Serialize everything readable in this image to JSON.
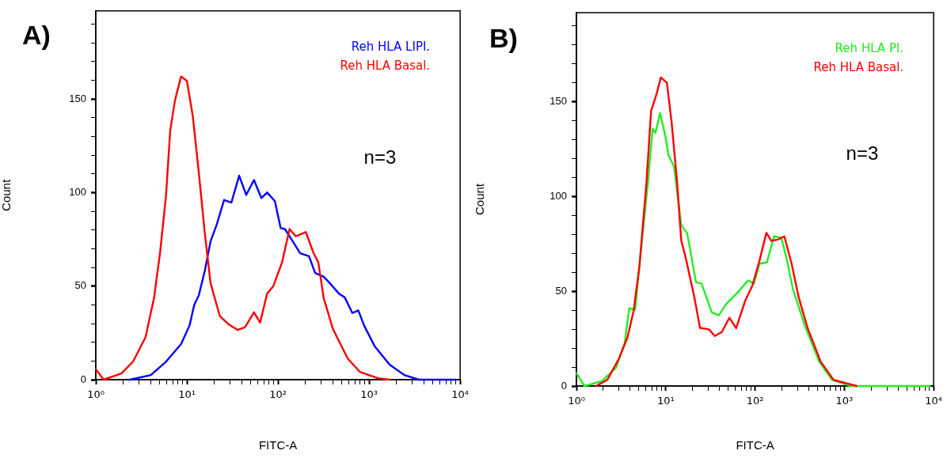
{
  "chart_data": [
    {
      "type": "line",
      "title": "A)",
      "xlabel": "FITC-A",
      "ylabel": "Count",
      "annotations": [
        "n=3"
      ],
      "log": "x",
      "legend": "top right",
      "xlim": [
        1,
        10000
      ],
      "xticks": [
        {
          "value": 1,
          "label": "10⁰"
        },
        {
          "value": 2,
          "label": null
        },
        {
          "value": 3,
          "label": null
        },
        {
          "value": 4,
          "label": null
        },
        {
          "value": 5,
          "label": null
        },
        {
          "value": 6,
          "label": null
        },
        {
          "value": 7,
          "label": null
        },
        {
          "value": 8,
          "label": null
        },
        {
          "value": 9,
          "label": null
        },
        {
          "value": 10,
          "label": "10¹"
        },
        {
          "value": 20,
          "label": null
        },
        {
          "value": 30,
          "label": null
        },
        {
          "value": 40,
          "label": null
        },
        {
          "value": 50,
          "label": null
        },
        {
          "value": 60,
          "label": null
        },
        {
          "value": 70,
          "label": null
        },
        {
          "value": 80,
          "label": null
        },
        {
          "value": 90,
          "label": null
        },
        {
          "value": 100,
          "label": "10²"
        },
        {
          "value": 200,
          "label": null
        },
        {
          "value": 300,
          "label": null
        },
        {
          "value": 400,
          "label": null
        },
        {
          "value": 500,
          "label": null
        },
        {
          "value": 600,
          "label": null
        },
        {
          "value": 700,
          "label": null
        },
        {
          "value": 800,
          "label": null
        },
        {
          "value": 900,
          "label": null
        },
        {
          "value": 1000,
          "label": "10³"
        },
        {
          "value": 2000,
          "label": null
        },
        {
          "value": 3000,
          "label": null
        },
        {
          "value": 4000,
          "label": null
        },
        {
          "value": 5000,
          "label": null
        },
        {
          "value": 6000,
          "label": null
        },
        {
          "value": 7000,
          "label": null
        },
        {
          "value": 8000,
          "label": null
        },
        {
          "value": 9000,
          "label": null
        },
        {
          "value": 10000,
          "label": "10⁴"
        }
      ],
      "ylim": [
        0,
        197
      ],
      "yticks": [
        0,
        {
          "value": 10,
          "label": null
        },
        {
          "value": 20,
          "label": null
        },
        {
          "value": 30,
          "label": null
        },
        {
          "value": 40,
          "label": null
        },
        50,
        {
          "value": 60,
          "label": null
        },
        {
          "value": 70,
          "label": null
        },
        {
          "value": 80,
          "label": null
        },
        {
          "value": 90,
          "label": null
        },
        100,
        {
          "value": 110,
          "label": null
        },
        {
          "value": 120,
          "label": null
        },
        {
          "value": 130,
          "label": null
        },
        {
          "value": 140,
          "label": null
        },
        150,
        {
          "value": 160,
          "label": null
        },
        {
          "value": 170,
          "label": null
        },
        {
          "value": 180,
          "label": null
        },
        {
          "value": 190,
          "label": null
        }
      ],
      "series": [
        {
          "name": "Reh HLA LIPI.",
          "color": "#0000ff",
          "x": [
            2.37,
            4.02,
            5.89,
            8.63,
            10.7,
            12.05,
            13.5,
            15.7,
            18.2,
            21.3,
            25.6,
            30.8,
            37.5,
            44.8,
            54.5,
            65.8,
            76,
            92.5,
            107,
            119,
            145,
            175,
            219,
            256,
            318,
            372,
            467,
            540,
            656,
            762,
            881,
            1158,
            1682,
            2438,
            3540,
            9000
          ],
          "values": [
            0,
            2.5,
            9.6,
            19,
            29,
            40,
            45,
            58,
            74,
            83,
            96,
            94.6,
            109,
            98.7,
            106.7,
            97,
            100,
            95.4,
            81,
            80.5,
            74,
            67.6,
            66,
            57,
            55,
            51.5,
            46,
            44,
            35.6,
            37,
            29,
            17.7,
            8,
            2.5,
            0,
            0
          ]
        },
        {
          "name": "Reh HLA Basal.",
          "color": "#ff0000",
          "x": [
            1,
            1.22,
            1.91,
            2.56,
            3.51,
            4.35,
            5.08,
            5.89,
            6.56,
            7.38,
            8.63,
            10,
            11.6,
            13.5,
            15.7,
            18.2,
            23,
            28.5,
            36,
            43.5,
            54.5,
            63.7,
            76,
            89,
            111,
            134,
            157,
            202,
            246,
            277,
            318,
            402,
            583,
            790,
            1253,
            1682
          ],
          "values": [
            5.6,
            0,
            3.3,
            9.6,
            22.6,
            43.5,
            68,
            98,
            133,
            149,
            162,
            159.6,
            141,
            111,
            78.6,
            51.5,
            34,
            29.7,
            26.6,
            28,
            36,
            30.5,
            46,
            50,
            62.8,
            80.5,
            76.6,
            78.9,
            67.6,
            62.8,
            43.5,
            27,
            11.3,
            4.2,
            0.8,
            0
          ]
        }
      ]
    },
    {
      "type": "line",
      "title": "B)",
      "xlabel": "FITC-A",
      "ylabel": "Count",
      "annotations": [
        "n=3"
      ],
      "log": "x",
      "legend": "top right",
      "xlim": [
        1,
        10000
      ],
      "xticks": [
        {
          "value": 1,
          "label": "10⁰"
        },
        {
          "value": 2,
          "label": null
        },
        {
          "value": 3,
          "label": null
        },
        {
          "value": 4,
          "label": null
        },
        {
          "value": 5,
          "label": null
        },
        {
          "value": 6,
          "label": null
        },
        {
          "value": 7,
          "label": null
        },
        {
          "value": 8,
          "label": null
        },
        {
          "value": 9,
          "label": null
        },
        {
          "value": 10,
          "label": "10¹"
        },
        {
          "value": 20,
          "label": null
        },
        {
          "value": 30,
          "label": null
        },
        {
          "value": 40,
          "label": null
        },
        {
          "value": 50,
          "label": null
        },
        {
          "value": 60,
          "label": null
        },
        {
          "value": 70,
          "label": null
        },
        {
          "value": 80,
          "label": null
        },
        {
          "value": 90,
          "label": null
        },
        {
          "value": 100,
          "label": "10²"
        },
        {
          "value": 200,
          "label": null
        },
        {
          "value": 300,
          "label": null
        },
        {
          "value": 400,
          "label": null
        },
        {
          "value": 500,
          "label": null
        },
        {
          "value": 600,
          "label": null
        },
        {
          "value": 700,
          "label": null
        },
        {
          "value": 800,
          "label": null
        },
        {
          "value": 900,
          "label": null
        },
        {
          "value": 1000,
          "label": "10³"
        },
        {
          "value": 2000,
          "label": null
        },
        {
          "value": 3000,
          "label": null
        },
        {
          "value": 4000,
          "label": null
        },
        {
          "value": 5000,
          "label": null
        },
        {
          "value": 6000,
          "label": null
        },
        {
          "value": 7000,
          "label": null
        },
        {
          "value": 8000,
          "label": null
        },
        {
          "value": 9000,
          "label": null
        },
        {
          "value": 10000,
          "label": "10⁴"
        }
      ],
      "ylim": [
        0,
        197
      ],
      "yticks": [
        0,
        {
          "value": 10,
          "label": null
        },
        {
          "value": 20,
          "label": null
        },
        {
          "value": 30,
          "label": null
        },
        {
          "value": 40,
          "label": null
        },
        50,
        {
          "value": 60,
          "label": null
        },
        {
          "value": 70,
          "label": null
        },
        {
          "value": 80,
          "label": null
        },
        {
          "value": 90,
          "label": null
        },
        100,
        {
          "value": 110,
          "label": null
        },
        {
          "value": 120,
          "label": null
        },
        {
          "value": 130,
          "label": null
        },
        {
          "value": 140,
          "label": null
        },
        150,
        {
          "value": 160,
          "label": null
        },
        {
          "value": 170,
          "label": null
        },
        {
          "value": 180,
          "label": null
        },
        {
          "value": 190,
          "label": null
        }
      ],
      "series": [
        {
          "name": "Reh HLA PI.",
          "color": "#22ee22",
          "x": [
            1,
            1.23,
            1.92,
            2.79,
            3.47,
            3.9,
            4.54,
            5.27,
            6.33,
            7.12,
            7.65,
            8.65,
            9.9,
            10.7,
            12.4,
            14.9,
            17.4,
            21.8,
            25.2,
            32.8,
            39.3,
            47.8,
            64,
            83.6,
            97,
            112,
            136,
            163,
            197,
            229,
            264,
            359,
            521,
            726,
            1180,
            9000
          ],
          "values": [
            6.7,
            0,
            2.5,
            9.8,
            22.6,
            41,
            40.4,
            71,
            107.6,
            135.8,
            133.5,
            144,
            131.9,
            122,
            115.7,
            85,
            80.6,
            54.8,
            54,
            38.9,
            37.3,
            43.5,
            49.4,
            55.7,
            54,
            64.5,
            65.3,
            79,
            78.3,
            66,
            51.6,
            32.2,
            13,
            3.3,
            0,
            0
          ]
        },
        {
          "name": "Reh HLA Basal.",
          "color": "#ff0000",
          "x": [
            1.66,
            2.22,
            3,
            3.75,
            4.38,
            5.07,
            6.09,
            6.85,
            7.94,
            8.81,
            10.3,
            11.6,
            13.4,
            14.9,
            16.7,
            20.9,
            24.2,
            30.5,
            35.4,
            42.5,
            51.6,
            61.5,
            77.6,
            93.4,
            112,
            134,
            152,
            183,
            213,
            257,
            308,
            387,
            542,
            755,
            1377
          ],
          "values": [
            0,
            3.3,
            14.6,
            26,
            40,
            63,
            107.6,
            145,
            154.5,
            162.8,
            160,
            139.8,
            107.6,
            77,
            67.8,
            46.9,
            30.7,
            29.9,
            26.4,
            28.5,
            36,
            30.5,
            45,
            53,
            66,
            80.8,
            76.6,
            77.4,
            79,
            64.5,
            46.9,
            30.7,
            13,
            3.3,
            0
          ]
        }
      ]
    }
  ]
}
